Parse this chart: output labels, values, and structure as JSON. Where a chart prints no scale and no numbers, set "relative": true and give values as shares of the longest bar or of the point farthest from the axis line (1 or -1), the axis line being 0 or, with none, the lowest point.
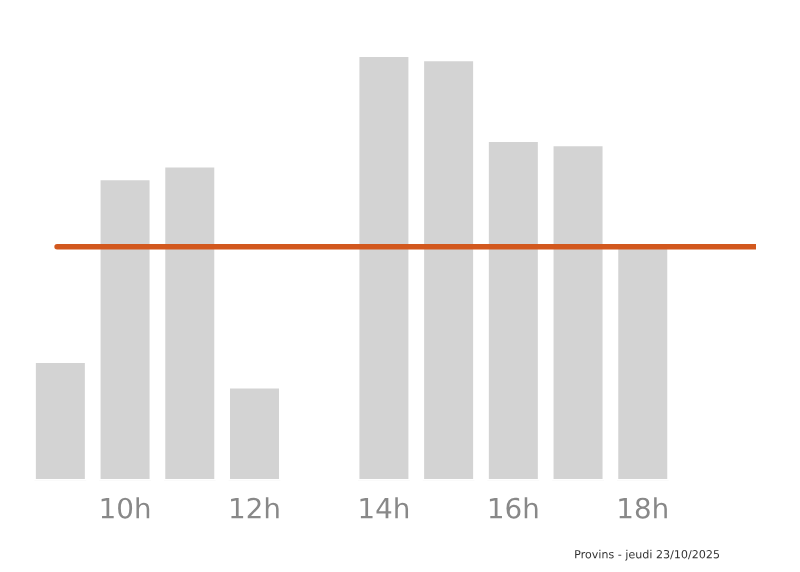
{
  "chart_data": {
    "type": "bar",
    "relative": true,
    "categories": [
      null,
      "10h",
      null,
      "12h",
      null,
      "14h",
      null,
      "16h",
      null,
      "18h",
      null
    ],
    "values": [
      0.28,
      0.71,
      0.74,
      0.22,
      null,
      1,
      0.99,
      0.8,
      0.79,
      0.55,
      null
    ],
    "color": "#d3d3d3",
    "ref_lines": [
      {
        "axis": "y",
        "value": 0.55,
        "color": "#d2581e"
      }
    ],
    "annotations": [
      "Provins - jeudi 23/10/2025"
    ],
    "grid": false,
    "legend": false
  }
}
